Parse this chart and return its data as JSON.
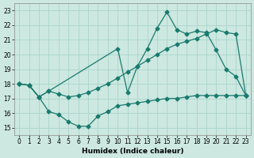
{
  "xlabel": "Humidex (Indice chaleur)",
  "background_color": "#cce8e0",
  "grid_color": "#aad4cc",
  "line_color": "#1a7a6e",
  "xlim": [
    -0.5,
    23.5
  ],
  "ylim": [
    14.5,
    23.5
  ],
  "xticks": [
    0,
    1,
    2,
    3,
    4,
    5,
    6,
    7,
    8,
    9,
    10,
    11,
    12,
    13,
    14,
    15,
    16,
    17,
    18,
    19,
    20,
    21,
    22,
    23
  ],
  "yticks": [
    15,
    16,
    17,
    18,
    19,
    20,
    21,
    22,
    23
  ],
  "line1_x": [
    0,
    1,
    2,
    3,
    4,
    5,
    6,
    7,
    8,
    9,
    10,
    11,
    12,
    13,
    14,
    15,
    16,
    17,
    18,
    19,
    20,
    21,
    22,
    23
  ],
  "line1_y": [
    18.0,
    17.9,
    17.1,
    16.1,
    15.9,
    15.4,
    15.1,
    15.1,
    15.8,
    16.1,
    16.5,
    16.6,
    16.7,
    16.8,
    16.9,
    17.0,
    17.0,
    17.1,
    17.2,
    17.2,
    17.2,
    17.2,
    17.2,
    17.2
  ],
  "line2_x": [
    0,
    1,
    2,
    3,
    10,
    11,
    12,
    13,
    14,
    15,
    16,
    17,
    18,
    19,
    20,
    21,
    22,
    23
  ],
  "line2_y": [
    18.0,
    17.9,
    17.1,
    17.5,
    20.4,
    17.4,
    19.2,
    20.4,
    21.8,
    22.9,
    21.7,
    21.4,
    21.6,
    21.5,
    20.3,
    19.0,
    18.5,
    17.2
  ],
  "line3_x": [
    0,
    1,
    2,
    3,
    4,
    5,
    6,
    7,
    8,
    9,
    10,
    11,
    12,
    13,
    14,
    15,
    16,
    17,
    18,
    19,
    20,
    21,
    22,
    23
  ],
  "line3_y": [
    18.0,
    17.9,
    17.1,
    17.5,
    17.3,
    17.1,
    17.2,
    17.4,
    17.7,
    18.0,
    18.4,
    18.8,
    19.2,
    19.6,
    20.0,
    20.4,
    20.7,
    20.9,
    21.1,
    21.4,
    21.7,
    21.5,
    21.4,
    17.2
  ]
}
